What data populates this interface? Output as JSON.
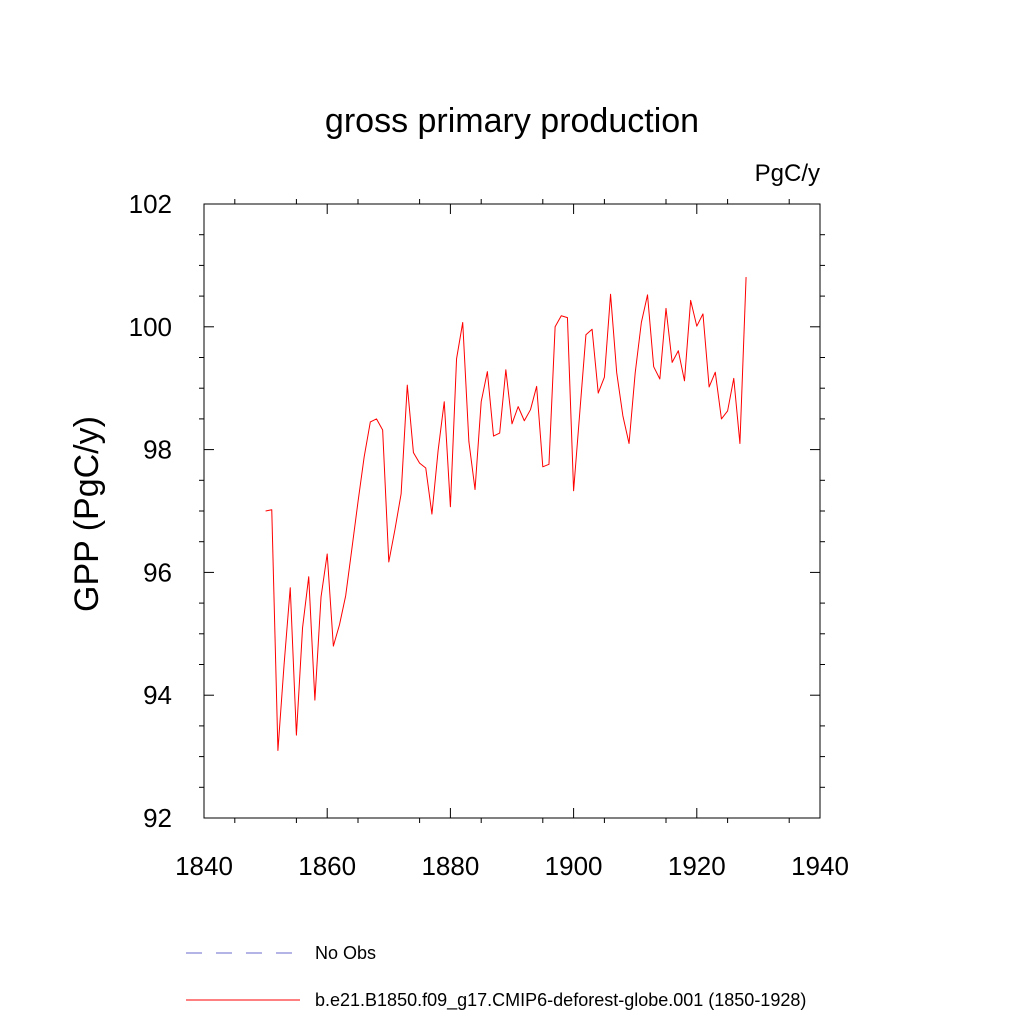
{
  "chart_data": {
    "type": "line",
    "title": "gross primary production",
    "units_label": "PgC/y",
    "ylabel": "GPP  (PgC/y)",
    "xlabel": "",
    "xlim": [
      1840,
      1940
    ],
    "ylim": [
      92,
      102
    ],
    "x_ticks": [
      1840,
      1860,
      1880,
      1900,
      1920,
      1940
    ],
    "y_ticks": [
      92,
      94,
      96,
      98,
      100,
      102
    ],
    "x_tick_labels": [
      "1840",
      "1860",
      "1880",
      "1900",
      "1920",
      "1940"
    ],
    "y_tick_labels": [
      "92",
      "94",
      "96",
      "98",
      "100",
      "102"
    ],
    "grid": false,
    "series": [
      {
        "name": "b.e21.B1850.f09_g17.CMIP6-deforest-globe.001 (1850-1928)",
        "color": "#ff0000",
        "x": [
          1850,
          1851,
          1852,
          1853,
          1854,
          1855,
          1856,
          1857,
          1858,
          1859,
          1860,
          1861,
          1862,
          1863,
          1864,
          1865,
          1866,
          1867,
          1868,
          1869,
          1870,
          1871,
          1872,
          1873,
          1874,
          1875,
          1876,
          1877,
          1878,
          1879,
          1880,
          1881,
          1882,
          1883,
          1884,
          1885,
          1886,
          1887,
          1888,
          1889,
          1890,
          1891,
          1892,
          1893,
          1894,
          1895,
          1896,
          1897,
          1898,
          1899,
          1900,
          1901,
          1902,
          1903,
          1904,
          1905,
          1906,
          1907,
          1908,
          1909,
          1910,
          1911,
          1912,
          1913,
          1914,
          1915,
          1916,
          1917,
          1918,
          1919,
          1920,
          1921,
          1922,
          1923,
          1924,
          1925,
          1926,
          1927,
          1928
        ],
        "values": [
          97.0,
          97.02,
          93.1,
          94.5,
          95.75,
          93.35,
          95.1,
          95.93,
          93.92,
          95.6,
          96.3,
          94.8,
          95.15,
          95.62,
          96.38,
          97.15,
          97.88,
          98.45,
          98.5,
          98.32,
          96.17,
          96.7,
          97.28,
          99.05,
          97.95,
          97.78,
          97.7,
          96.95,
          97.98,
          98.78,
          97.07,
          99.48,
          100.07,
          98.13,
          97.35,
          98.78,
          99.27,
          98.22,
          98.27,
          99.3,
          98.42,
          98.7,
          98.47,
          98.65,
          99.03,
          97.72,
          97.76,
          100.0,
          100.18,
          100.15,
          97.33,
          98.6,
          99.87,
          99.96,
          98.92,
          99.18,
          100.53,
          99.25,
          98.55,
          98.1,
          99.25,
          100.07,
          100.52,
          99.35,
          99.15,
          100.3,
          99.42,
          99.61,
          99.12,
          100.43,
          100.01,
          100.21,
          99.02,
          99.26,
          98.5,
          98.63,
          99.16,
          98.1,
          100.81
        ]
      },
      {
        "name": "No Obs",
        "color": "#6a6acd",
        "x": [],
        "values": []
      }
    ],
    "legend_placement": "bottom"
  }
}
